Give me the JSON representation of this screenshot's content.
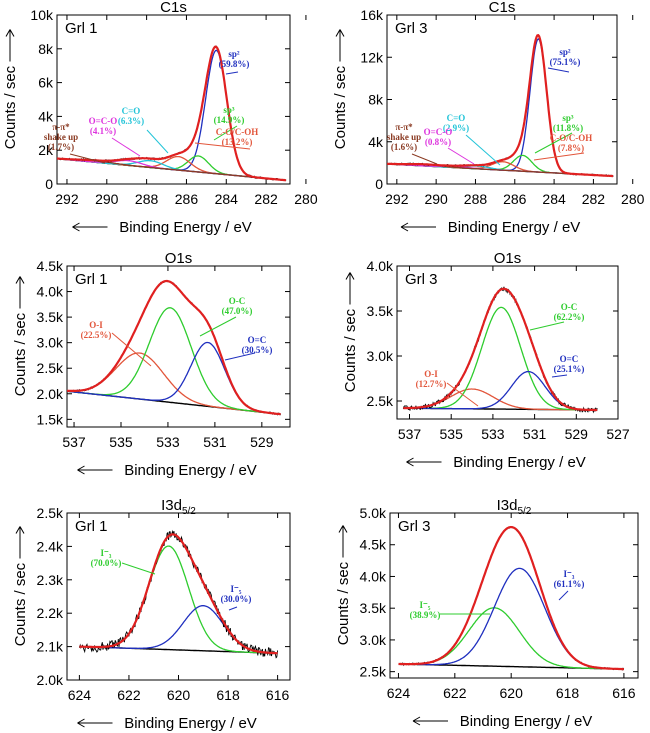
{
  "chart_data": [
    {
      "id": "c1s-grl1",
      "type": "line",
      "title": "C1s",
      "sample": "Grl 1",
      "xlabel": "Binding Energy / eV",
      "ylabel": "Counts / sec",
      "xlim": [
        292.5,
        280.8
      ],
      "ylim": [
        0,
        10000
      ],
      "xticks": [
        292,
        290,
        288,
        286,
        284,
        282,
        280
      ],
      "yticks": [
        0,
        2000,
        4000,
        6000,
        8000,
        10000
      ],
      "ytick_labels": [
        "0",
        "2k",
        "4k",
        "6k",
        "8k",
        "10k"
      ],
      "background": {
        "from": [
          292.5,
          1500
        ],
        "to": [
          281,
          220
        ]
      },
      "components": [
        {
          "name": "sp²",
          "label": "sp²",
          "pct": "(59.8%)",
          "center": 284.5,
          "height": 7300,
          "fwhm": 1.25,
          "color": "#1f2fbf"
        },
        {
          "name": "sp³",
          "label": "sp³",
          "pct": "(14.9%)",
          "center": 285.4,
          "height": 950,
          "fwhm": 1.2,
          "color": "#2ecc2e"
        },
        {
          "name": "C-O/C-OH",
          "label": "C-O/C-OH",
          "pct": "(13.2%)",
          "center": 286.4,
          "height": 800,
          "fwhm": 1.4,
          "color": "#e2553a"
        },
        {
          "name": "C=O",
          "label": "C=O",
          "pct": "(6.3%)",
          "center": 287.8,
          "height": 400,
          "fwhm": 1.5,
          "color": "#22c4d8"
        },
        {
          "name": "O=C-O",
          "label": "O=C-O",
          "pct": "(4.1%)",
          "center": 288.9,
          "height": 280,
          "fwhm": 1.6,
          "color": "#dd33dd"
        },
        {
          "name": "π-π* shake up",
          "label": "π-π*\nshake up",
          "pct": "(1.7%)",
          "center": 290.6,
          "height": 100,
          "fwhm": 2.0,
          "color": "#8a3a22"
        }
      ],
      "envelope_color": "#e02020",
      "experimental_color": "#000000"
    },
    {
      "id": "c1s-grl3",
      "type": "line",
      "title": "C1s",
      "sample": "Grl 3",
      "xlabel": "Binding Energy / eV",
      "ylabel": "Counts / sec",
      "xlim": [
        292.5,
        280.8
      ],
      "ylim": [
        0,
        16000
      ],
      "xticks": [
        292,
        290,
        288,
        286,
        284,
        282,
        280
      ],
      "yticks": [
        0,
        4000,
        8000,
        12000,
        16000
      ],
      "ytick_labels": [
        "0",
        "4k",
        "8k",
        "12k",
        "16k"
      ],
      "background": {
        "from": [
          292.5,
          1900
        ],
        "to": [
          281,
          750
        ]
      },
      "components": [
        {
          "name": "sp²",
          "label": "sp²",
          "pct": "(75.1%)",
          "center": 284.8,
          "height": 12600,
          "fwhm": 1.0,
          "color": "#1f2fbf"
        },
        {
          "name": "sp³",
          "label": "sp³",
          "pct": "(11.8%)",
          "center": 285.6,
          "height": 1500,
          "fwhm": 1.1,
          "color": "#2ecc2e"
        },
        {
          "name": "C-O/C-OH",
          "label": "C-O/C-OH",
          "pct": "(7.8%)",
          "center": 286.6,
          "height": 800,
          "fwhm": 1.3,
          "color": "#e2553a"
        },
        {
          "name": "C=O",
          "label": "C=O",
          "pct": "(2.9%)",
          "center": 287.9,
          "height": 260,
          "fwhm": 1.5,
          "color": "#22c4d8"
        },
        {
          "name": "O=C-O",
          "label": "O=C-O",
          "pct": "(0.8%)",
          "center": 289.0,
          "height": 100,
          "fwhm": 1.6,
          "color": "#dd33dd"
        },
        {
          "name": "π-π* shake up",
          "label": "π-π*\nshake up",
          "pct": "(1.6%)",
          "center": 290.6,
          "height": 150,
          "fwhm": 2.0,
          "color": "#8a3a22"
        }
      ],
      "envelope_color": "#e02020",
      "experimental_color": "#000000"
    },
    {
      "id": "o1s-grl1",
      "type": "line",
      "title": "O1s",
      "sample": "Grl 1",
      "xlabel": "Binding Energy / eV",
      "ylabel": "Counts / sec",
      "xlim": [
        537.3,
        527.8
      ],
      "ylim": [
        1350,
        4500
      ],
      "xticks": [
        537,
        535,
        533,
        531,
        529
      ],
      "yticks": [
        1500,
        2000,
        2500,
        3000,
        3500,
        4000,
        4500
      ],
      "ytick_labels": [
        "1.5k",
        "2.0k",
        "2.5k",
        "3.0k",
        "3.5k",
        "4.0k",
        "4.5k"
      ],
      "background": {
        "from": [
          537.3,
          2050
        ],
        "to": [
          528.2,
          1600
        ]
      },
      "components": [
        {
          "name": "O-I",
          "label": "O-I",
          "pct": "(22.5%)",
          "center": 534.2,
          "height": 900,
          "fwhm": 2.4,
          "color": "#e2553a"
        },
        {
          "name": "O-C",
          "label": "O-C",
          "pct": "(47.0%)",
          "center": 532.9,
          "height": 1850,
          "fwhm": 2.1,
          "color": "#2ecc2e"
        },
        {
          "name": "O=C",
          "label": "O=C",
          "pct": "(30.5%)",
          "center": 531.3,
          "height": 1250,
          "fwhm": 1.7,
          "color": "#1f2fbf"
        }
      ],
      "envelope_color": "#e02020",
      "experimental_color": "#000000"
    },
    {
      "id": "o1s-grl3",
      "type": "line",
      "title": "O1s",
      "sample": "Grl 3",
      "xlabel": "Binding Energy / eV",
      "ylabel": "Counts / sec",
      "xlim": [
        537.6,
        527.0
      ],
      "ylim": [
        2300,
        4000
      ],
      "xticks": [
        537,
        535,
        533,
        531,
        529,
        527
      ],
      "yticks": [
        2500,
        3000,
        3500,
        4000
      ],
      "ytick_labels": [
        "2.5k",
        "3.0k",
        "3.5k",
        "4.0k"
      ],
      "background": {
        "from": [
          537.3,
          2420
        ],
        "to": [
          528.0,
          2400
        ]
      },
      "components": [
        {
          "name": "O-I",
          "label": "O-I",
          "pct": "(12.7%)",
          "center": 534.0,
          "height": 220,
          "fwhm": 2.4,
          "color": "#e2553a"
        },
        {
          "name": "O-C",
          "label": "O-C",
          "pct": "(62.2%)",
          "center": 532.6,
          "height": 1130,
          "fwhm": 2.2,
          "color": "#2ecc2e"
        },
        {
          "name": "O=C",
          "label": "O=C",
          "pct": "(25.1%)",
          "center": 531.3,
          "height": 420,
          "fwhm": 1.9,
          "color": "#1f2fbf"
        }
      ],
      "envelope_color": "#e02020",
      "experimental_color": "#000000"
    },
    {
      "id": "i3d-grl1",
      "type": "line",
      "title": "I3d5/2",
      "title_main": "I3d",
      "title_sub": "5/2",
      "sample": "Grl 1",
      "xlabel": "Binding Energy / eV",
      "ylabel": "Counts / sec",
      "xlim": [
        624.5,
        615.5
      ],
      "ylim": [
        2000,
        2500
      ],
      "xticks": [
        624,
        622,
        620,
        618,
        616
      ],
      "yticks": [
        2000,
        2100,
        2200,
        2300,
        2400,
        2500
      ],
      "ytick_labels": [
        "2.0k",
        "2.1k",
        "2.2k",
        "2.3k",
        "2.4k",
        "2.5k"
      ],
      "background": {
        "from": [
          624,
          2100
        ],
        "to": [
          616,
          2080
        ]
      },
      "components": [
        {
          "name": "I⁻₃",
          "label": "I⁻₃",
          "pct": "(70.0%)",
          "center": 620.4,
          "height": 310,
          "fwhm": 1.9,
          "color": "#2ecc2e"
        },
        {
          "name": "I⁻₅",
          "label": "I⁻₅",
          "pct": "(30.0%)",
          "center": 619.0,
          "height": 135,
          "fwhm": 1.9,
          "color": "#1f2fbf"
        }
      ],
      "envelope_color": "#e02020",
      "experimental_color": "#000000"
    },
    {
      "id": "i3d-grl3",
      "type": "line",
      "title": "I3d5/2",
      "title_main": "I3d",
      "title_sub": "5/2",
      "sample": "Grl 3",
      "xlabel": "Binding Energy / eV",
      "ylabel": "Counts / sec",
      "xlim": [
        624.3,
        615.5
      ],
      "ylim": [
        2400,
        5000
      ],
      "xticks": [
        624,
        622,
        620,
        618,
        616
      ],
      "yticks": [
        2500,
        3000,
        3500,
        4000,
        4500,
        5000
      ],
      "ytick_labels": [
        "2.5k",
        "3.0k",
        "3.5k",
        "4.0k",
        "4.5k",
        "5.0k"
      ],
      "background": {
        "from": [
          624,
          2620
        ],
        "to": [
          616,
          2540
        ]
      },
      "components": [
        {
          "name": "I⁻₅",
          "label": "I⁻₅",
          "pct": "(38.9%)",
          "center": 620.6,
          "height": 920,
          "fwhm": 2.1,
          "color": "#2ecc2e"
        },
        {
          "name": "I⁻₃",
          "label": "I⁻₃",
          "pct": "(61.1%)",
          "center": 619.7,
          "height": 1550,
          "fwhm": 2.1,
          "color": "#1f2fbf"
        }
      ],
      "envelope_color": "#e02020",
      "experimental_color": "#000000"
    }
  ]
}
